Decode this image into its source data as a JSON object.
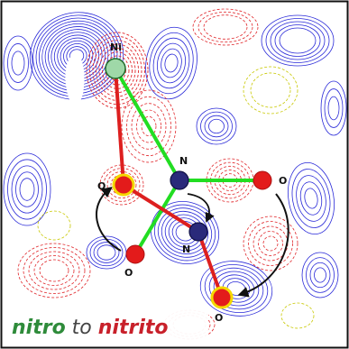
{
  "atoms": {
    "ni": "Ni",
    "n_top": "N",
    "n_bottom": "N",
    "o_upper_left": "O",
    "o_right": "O",
    "o_lower_left": "O",
    "o_bottom": "O"
  },
  "caption": {
    "word1": "nitro",
    "word2": " to ",
    "word3": "nitrito"
  },
  "colors": {
    "positive_contour": "#2a2ad8",
    "negative_contour": "#e0262a",
    "zero_contour": "#c8c800",
    "nickel": "#9fd8a8",
    "nitrogen": "#2a2a7a",
    "oxygen": "#e31b1b",
    "oxygen_ring": "#f5d800",
    "bond_nitro": "#22dd22",
    "bond_nitrito": "#dd1f1f",
    "caption_nitro": "#2e8b3a",
    "caption_nitrito": "#c8202a"
  }
}
